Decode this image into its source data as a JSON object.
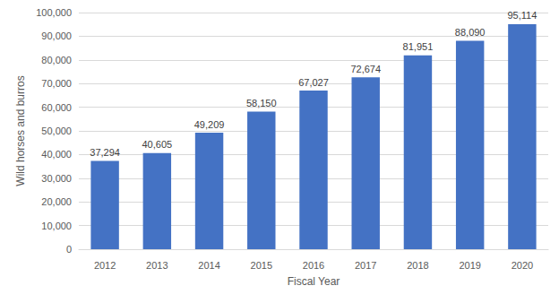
{
  "chart_data": {
    "type": "bar",
    "x_label": "Fiscal Year",
    "y_label": "Wild horses and burros",
    "categories": [
      "2012",
      "2013",
      "2014",
      "2015",
      "2016",
      "2017",
      "2018",
      "2019",
      "2020"
    ],
    "values": [
      37294,
      40605,
      49209,
      58150,
      67027,
      72674,
      81951,
      88090,
      95114
    ],
    "value_labels": [
      "37,294",
      "40,605",
      "49,209",
      "58,150",
      "67,027",
      "72,674",
      "81,951",
      "88,090",
      "95,114"
    ],
    "color": "#4472c4",
    "ylim": [
      0,
      100000
    ],
    "yticks": [
      0,
      {
        "value": 10000,
        "label": "10,000"
      },
      {
        "value": 20000,
        "label": "20,000"
      },
      {
        "value": 30000,
        "label": "30,000"
      },
      {
        "value": 40000,
        "label": "40,000"
      },
      {
        "value": 50000,
        "label": "50,000"
      },
      {
        "value": 60000,
        "label": "60,000"
      },
      {
        "value": 70000,
        "label": "70,000"
      },
      {
        "value": 80000,
        "label": "80,000"
      },
      {
        "value": 90000,
        "label": "90,000"
      },
      {
        "value": 100000,
        "label": "100,000"
      }
    ],
    "grid": true,
    "data_labels": true
  }
}
